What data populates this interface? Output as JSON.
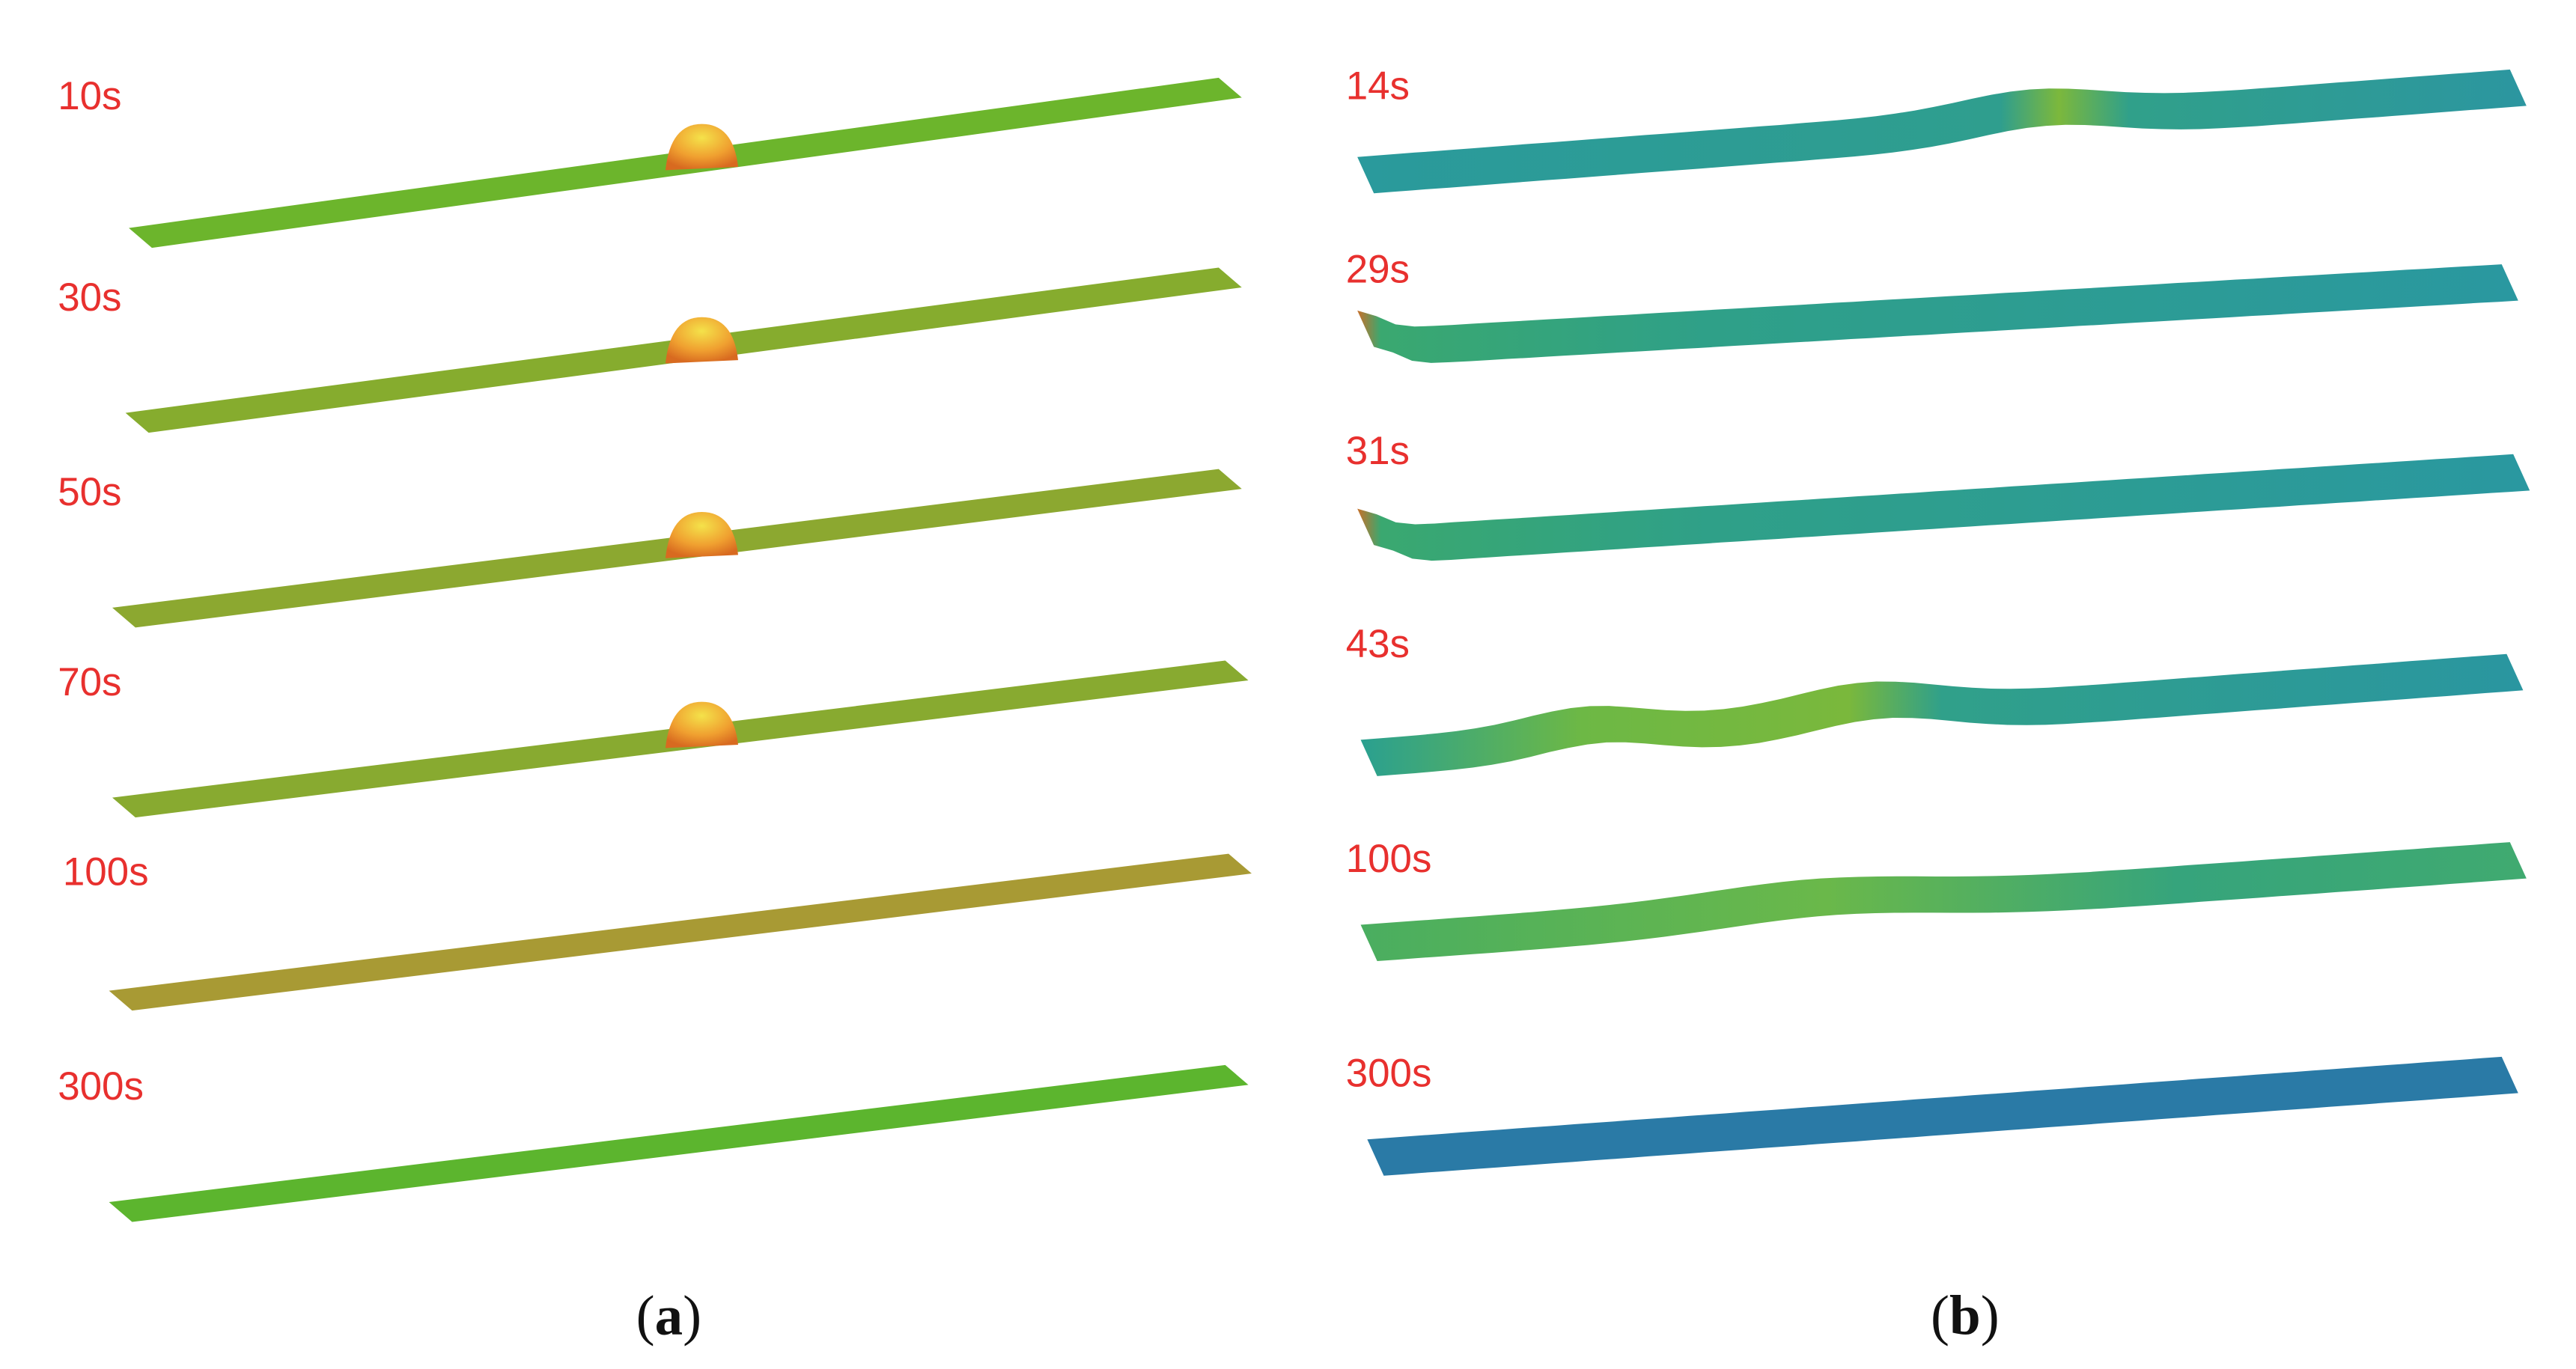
{
  "panels": [
    {
      "caption": [
        "(",
        "a",
        ")"
      ],
      "labels": [
        "10s",
        "30s",
        "50s",
        "70s",
        "100s",
        "300s"
      ]
    },
    {
      "caption": [
        "(",
        "b",
        ")"
      ],
      "labels": [
        "14s",
        "29s",
        "31s",
        "43s",
        "100s",
        "300s"
      ]
    }
  ]
}
